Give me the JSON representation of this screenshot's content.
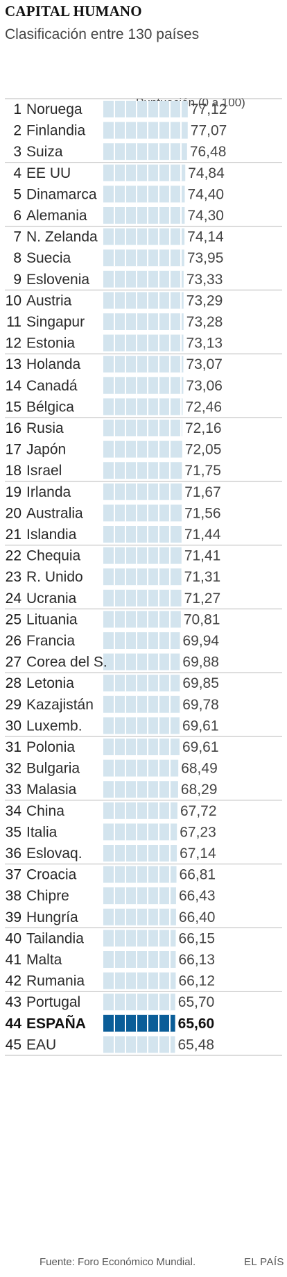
{
  "header": {
    "title": "CAPITAL HUMANO",
    "subtitle": "Clasificación entre 130 países"
  },
  "footer": {
    "source": "Fuente: Foro Económico Mundial.",
    "brand": "EL PAÍS"
  },
  "colors": {
    "bar": "#d3e4ee",
    "bar_highlight": "#0a5d98",
    "grid": "#ffffff",
    "rule": "#b8b8b8"
  },
  "chart_data": {
    "type": "bar",
    "orientation": "horizontal",
    "title": "CAPITAL HUMANO",
    "subtitle": "Clasificación entre 130 países",
    "value_label": "Puntuación (0 a 100)",
    "xlim": [
      0,
      100
    ],
    "highlight": "ESPAÑA",
    "rows": [
      {
        "rank": "1",
        "country": "Noruega",
        "value": 77.12,
        "label": "77,12"
      },
      {
        "rank": "2",
        "country": "Finlandia",
        "value": 77.07,
        "label": "77,07"
      },
      {
        "rank": "3",
        "country": "Suiza",
        "value": 76.48,
        "label": "76,48"
      },
      {
        "rank": "4",
        "country": "EE UU",
        "value": 74.84,
        "label": "74,84"
      },
      {
        "rank": "5",
        "country": "Dinamarca",
        "value": 74.4,
        "label": "74,40"
      },
      {
        "rank": "6",
        "country": "Alemania",
        "value": 74.3,
        "label": "74,30"
      },
      {
        "rank": "7",
        "country": "N. Zelanda",
        "value": 74.14,
        "label": "74,14"
      },
      {
        "rank": "8",
        "country": "Suecia",
        "value": 73.95,
        "label": "73,95"
      },
      {
        "rank": "9",
        "country": "Eslovenia",
        "value": 73.33,
        "label": "73,33"
      },
      {
        "rank": "10",
        "country": "Austria",
        "value": 73.29,
        "label": "73,29"
      },
      {
        "rank": "11",
        "country": "Singapur",
        "value": 73.28,
        "label": "73,28"
      },
      {
        "rank": "12",
        "country": "Estonia",
        "value": 73.13,
        "label": "73,13"
      },
      {
        "rank": "13",
        "country": "Holanda",
        "value": 73.07,
        "label": "73,07"
      },
      {
        "rank": "14",
        "country": "Canadá",
        "value": 73.06,
        "label": "73,06"
      },
      {
        "rank": "15",
        "country": "Bélgica",
        "value": 72.46,
        "label": "72,46"
      },
      {
        "rank": "16",
        "country": "Rusia",
        "value": 72.16,
        "label": "72,16"
      },
      {
        "rank": "17",
        "country": "Japón",
        "value": 72.05,
        "label": "72,05"
      },
      {
        "rank": "18",
        "country": "Israel",
        "value": 71.75,
        "label": "71,75"
      },
      {
        "rank": "19",
        "country": "Irlanda",
        "value": 71.67,
        "label": "71,67"
      },
      {
        "rank": "20",
        "country": "Australia",
        "value": 71.56,
        "label": "71,56"
      },
      {
        "rank": "21",
        "country": "Islandia",
        "value": 71.44,
        "label": "71,44"
      },
      {
        "rank": "22",
        "country": "Chequia",
        "value": 71.41,
        "label": "71,41"
      },
      {
        "rank": "23",
        "country": "R. Unido",
        "value": 71.31,
        "label": "71,31"
      },
      {
        "rank": "24",
        "country": "Ucrania",
        "value": 71.27,
        "label": "71,27"
      },
      {
        "rank": "25",
        "country": "Lituania",
        "value": 70.81,
        "label": "70,81"
      },
      {
        "rank": "26",
        "country": "Francia",
        "value": 69.94,
        "label": "69,94"
      },
      {
        "rank": "27",
        "country": "Corea del S.",
        "value": 69.88,
        "label": "69,88"
      },
      {
        "rank": "28",
        "country": "Letonia",
        "value": 69.85,
        "label": "69,85"
      },
      {
        "rank": "29",
        "country": "Kazajistán",
        "value": 69.78,
        "label": "69,78"
      },
      {
        "rank": "30",
        "country": "Luxemb.",
        "value": 69.61,
        "label": "69,61"
      },
      {
        "rank": "31",
        "country": "Polonia",
        "value": 69.61,
        "label": "69,61"
      },
      {
        "rank": "32",
        "country": "Bulgaria",
        "value": 68.49,
        "label": "68,49"
      },
      {
        "rank": "33",
        "country": "Malasia",
        "value": 68.29,
        "label": "68,29"
      },
      {
        "rank": "34",
        "country": "China",
        "value": 67.72,
        "label": "67,72"
      },
      {
        "rank": "35",
        "country": "Italia",
        "value": 67.23,
        "label": "67,23"
      },
      {
        "rank": "36",
        "country": "Eslovaq.",
        "value": 67.14,
        "label": "67,14"
      },
      {
        "rank": "37",
        "country": "Croacia",
        "value": 66.81,
        "label": "66,81"
      },
      {
        "rank": "38",
        "country": "Chipre",
        "value": 66.43,
        "label": "66,43"
      },
      {
        "rank": "39",
        "country": "Hungría",
        "value": 66.4,
        "label": "66,40"
      },
      {
        "rank": "40",
        "country": "Tailandia",
        "value": 66.15,
        "label": "66,15"
      },
      {
        "rank": "41",
        "country": "Malta",
        "value": 66.13,
        "label": "66,13"
      },
      {
        "rank": "42",
        "country": "Rumania",
        "value": 66.12,
        "label": "66,12"
      },
      {
        "rank": "43",
        "country": "Portugal",
        "value": 65.7,
        "label": "65,70"
      },
      {
        "rank": "44",
        "country": "ESPAÑA",
        "value": 65.6,
        "label": "65,60"
      },
      {
        "rank": "45",
        "country": "EAU",
        "value": 65.48,
        "label": "65,48"
      }
    ]
  }
}
